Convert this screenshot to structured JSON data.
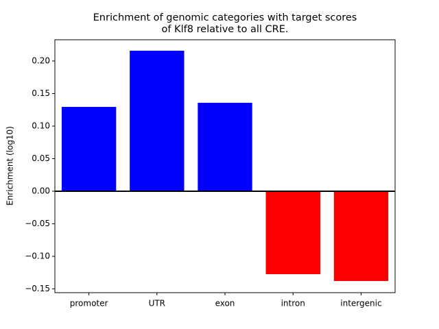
{
  "chart_data": {
    "type": "bar",
    "title": [
      "Enrichment of genomic categories with target scores",
      "of Klf8 relative to all CRE."
    ],
    "y_label": "Enrichment (log10)",
    "categories": [
      "promoter",
      "UTR",
      "exon",
      "intron",
      "intergenic"
    ],
    "values": [
      0.1295,
      0.2158,
      0.1358,
      -0.1274,
      -0.1379
    ],
    "colors": [
      "#0000ff",
      "#0000ff",
      "#0000ff",
      "#ff0000",
      "#ff0000"
    ],
    "ylim": [
      -0.1558,
      0.2326
    ],
    "yticks": [
      {
        "value": -0.15,
        "label": "−0.15"
      },
      {
        "value": -0.1,
        "label": "−0.10"
      },
      {
        "value": -0.05,
        "label": "−0.05"
      },
      {
        "value": 0,
        "label": "0.00"
      },
      {
        "value": 0.05,
        "label": "0.05"
      },
      {
        "value": 0.1,
        "label": "0.10"
      },
      {
        "value": 0.15,
        "label": "0.15"
      },
      {
        "value": 0.2,
        "label": "0.20"
      }
    ],
    "zero_line": true
  }
}
